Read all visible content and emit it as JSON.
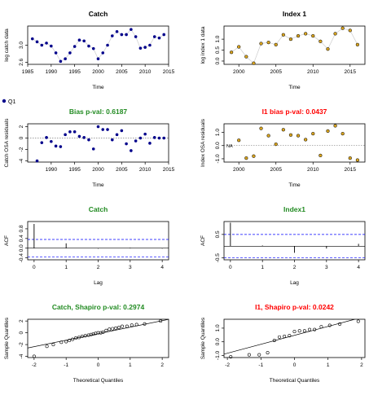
{
  "legend": {
    "label": "Q1",
    "marker_color": "#00008B"
  },
  "colors": {
    "title_default": "#000000",
    "title_good": "#228B22",
    "title_bad": "#FF0000",
    "series_dark": "#00008B",
    "series_gold": "#DAA520",
    "hline_blue": "#0000FF"
  },
  "chart_data": [
    {
      "type": "scatter",
      "title": "Catch",
      "title_color": "black",
      "xlabel": "Time",
      "ylabel": "log catch data",
      "xlim": [
        1985,
        2015
      ],
      "ylim": [
        2.55,
        3.45
      ],
      "xticks": [
        1985,
        1990,
        1995,
        2000,
        2005,
        2010,
        2015
      ],
      "yticks": [
        {
          "v": 2.6,
          "label": "2.6"
        },
        {
          "v": 3.0,
          "label": "3.0"
        }
      ],
      "connect": true,
      "point_style": "filled-dark",
      "x": [
        1986,
        1987,
        1988,
        1989,
        1990,
        1991,
        1992,
        1993,
        1994,
        1995,
        1996,
        1997,
        1998,
        1999,
        2000,
        2001,
        2002,
        2003,
        2004,
        2005,
        2006,
        2007,
        2008,
        2009,
        2010,
        2011,
        2012,
        2013,
        2014
      ],
      "y": [
        3.15,
        3.08,
        3.0,
        3.05,
        2.98,
        2.82,
        2.62,
        2.68,
        2.82,
        2.97,
        3.12,
        3.1,
        2.98,
        2.92,
        2.68,
        2.82,
        3.0,
        3.22,
        3.32,
        3.25,
        3.25,
        3.37,
        3.2,
        2.93,
        2.95,
        3.0,
        3.2,
        3.17,
        3.25
      ]
    },
    {
      "type": "scatter",
      "title": "Index 1",
      "title_color": "black",
      "xlabel": "Time",
      "ylabel": "log index 1 data",
      "xlim": [
        1998,
        2017
      ],
      "ylim": [
        -0.15,
        1.6
      ],
      "xticks": [
        2000,
        2005,
        2010,
        2015
      ],
      "yticks": [
        {
          "v": 0.0,
          "label": "0.0"
        },
        {
          "v": 0.5,
          "label": "0.5"
        },
        {
          "v": 1.0,
          "label": "1.0"
        }
      ],
      "connect": true,
      "point_style": "gold",
      "x": [
        1999,
        2000,
        2001,
        2002,
        2003,
        2004,
        2005,
        2006,
        2007,
        2008,
        2009,
        2010,
        2011,
        2012,
        2013,
        2014,
        2015,
        2016
      ],
      "y": [
        0.4,
        0.65,
        0.2,
        -0.1,
        0.8,
        0.85,
        0.75,
        1.2,
        1.0,
        1.15,
        1.25,
        1.15,
        0.9,
        0.55,
        1.25,
        1.5,
        1.4,
        0.75
      ]
    },
    {
      "type": "scatter",
      "title": "Bias p-val: 0.6187",
      "title_color": "green",
      "xlabel": "Time",
      "ylabel": "Catch OSA residuals",
      "xlim": [
        1985,
        2015
      ],
      "ylim": [
        -4.2,
        2.5
      ],
      "xticks": [
        1990,
        1995,
        2000,
        2005,
        2010,
        2015
      ],
      "yticks": [
        {
          "v": -4,
          "label": "-4"
        },
        {
          "v": -2,
          "label": "-2"
        },
        {
          "v": 0,
          "label": "0"
        },
        {
          "v": 2,
          "label": "2"
        }
      ],
      "connect": false,
      "point_style": "filled-dark",
      "zero_line": true,
      "x": [
        1987,
        1988,
        1989,
        1990,
        1991,
        1992,
        1993,
        1994,
        1995,
        1996,
        1997,
        1998,
        1999,
        2000,
        2001,
        2002,
        2003,
        2004,
        2005,
        2006,
        2007,
        2008,
        2009,
        2010,
        2011,
        2012,
        2013,
        2014
      ],
      "y": [
        -4.0,
        -0.8,
        0.1,
        -0.6,
        -1.4,
        -1.5,
        0.6,
        1.1,
        1.1,
        0.3,
        0.1,
        -0.3,
        -1.9,
        2.0,
        1.5,
        1.5,
        -0.3,
        0.6,
        1.3,
        -1.0,
        -2.2,
        -0.5,
        0.0,
        0.7,
        -0.9,
        0.1,
        0.0,
        0.0
      ]
    },
    {
      "type": "scatter",
      "title": "I1 bias p-val: 0.0437",
      "title_color": "red",
      "xlabel": "Time",
      "ylabel": "Index OSA residuals",
      "xlim": [
        1998,
        2017
      ],
      "ylim": [
        -1.25,
        1.65
      ],
      "xticks": [
        2000,
        2005,
        2010,
        2015
      ],
      "yticks": [
        {
          "v": -1.0,
          "label": "-1.0"
        },
        {
          "v": 0.0,
          "label": "0.0"
        },
        {
          "v": 1.0,
          "label": "1.0"
        }
      ],
      "connect": false,
      "point_style": "gold",
      "zero_line": true,
      "annotation": "NA",
      "x": [
        2000,
        2001,
        2002,
        2003,
        2004,
        2005,
        2006,
        2007,
        2008,
        2009,
        2010,
        2011,
        2012,
        2013,
        2014,
        2015,
        2016
      ],
      "y": [
        0.4,
        -0.95,
        -0.8,
        1.3,
        0.75,
        0.1,
        1.2,
        0.8,
        0.75,
        0.45,
        0.9,
        -0.75,
        1.1,
        1.5,
        0.9,
        -0.95,
        -1.1
      ]
    },
    {
      "type": "bar",
      "title": "Catch",
      "title_color": "green",
      "xlabel": "Lag",
      "ylabel": "ACF",
      "xlim": [
        -0.2,
        4.2
      ],
      "ylim": [
        -0.48,
        1.1
      ],
      "xticks": [
        0,
        1,
        2,
        3,
        4
      ],
      "yticks": [
        {
          "v": -0.4,
          "label": "-0.4"
        },
        {
          "v": 0.0,
          "label": "0.0"
        },
        {
          "v": 0.4,
          "label": "0.4"
        },
        {
          "v": 0.8,
          "label": "0.8"
        }
      ],
      "lags": [
        0,
        1,
        2,
        3,
        4
      ],
      "values": [
        1.0,
        0.2,
        -0.02,
        0.02,
        -0.02
      ],
      "conf_band": [
        0.36,
        -0.36
      ]
    },
    {
      "type": "bar",
      "title": "Index1",
      "title_color": "green",
      "xlabel": "Lag",
      "ylabel": "ACF",
      "xlim": [
        -0.2,
        4.2
      ],
      "ylim": [
        -0.58,
        1.05
      ],
      "xticks": [
        0,
        1,
        2,
        3,
        4
      ],
      "yticks": [
        {
          "v": -0.5,
          "label": "-0.5"
        },
        {
          "v": 0.5,
          "label": "0.5"
        }
      ],
      "lags": [
        0,
        1,
        2,
        3,
        4
      ],
      "values": [
        1.0,
        0.03,
        -0.28,
        -0.1,
        0.1
      ],
      "conf_band": [
        0.5,
        -0.5
      ]
    },
    {
      "type": "scatter",
      "title": "Catch, Shapiro p-val: 0.2974",
      "title_color": "green",
      "xlabel": "Theoretical Quantiles",
      "ylabel": "Sample Quantiles",
      "xlim": [
        -2.2,
        2.2
      ],
      "ylim": [
        -4.2,
        2.3
      ],
      "xticks": [
        -2,
        -1,
        0,
        1,
        2
      ],
      "yticks": [
        {
          "v": -4,
          "label": "-4"
        },
        {
          "v": -2,
          "label": "-2"
        },
        {
          "v": 0,
          "label": "0"
        },
        {
          "v": 2,
          "label": "2"
        }
      ],
      "connect": false,
      "point_style": "open",
      "qq_line": [
        [
          -2.4,
          -2.8
        ],
        [
          2.4,
          2.5
        ]
      ],
      "x": [
        -2.0,
        -1.6,
        -1.4,
        -1.15,
        -1.0,
        -0.9,
        -0.8,
        -0.7,
        -0.6,
        -0.5,
        -0.4,
        -0.3,
        -0.22,
        -0.15,
        -0.08,
        0.0,
        0.08,
        0.15,
        0.25,
        0.35,
        0.45,
        0.55,
        0.65,
        0.75,
        0.9,
        1.05,
        1.2,
        1.45,
        1.95
      ],
      "y": [
        -4.0,
        -2.3,
        -2.0,
        -1.6,
        -1.5,
        -1.3,
        -1.1,
        -0.9,
        -0.8,
        -0.6,
        -0.5,
        -0.4,
        -0.3,
        -0.2,
        -0.1,
        0.0,
        0.0,
        0.1,
        0.4,
        0.6,
        0.7,
        0.8,
        0.9,
        1.1,
        1.1,
        1.3,
        1.4,
        1.5,
        2.0
      ]
    },
    {
      "type": "scatter",
      "title": "I1, Shapiro p-val: 0.0242",
      "title_color": "red",
      "xlabel": "Theoretical Quantiles",
      "ylabel": "Sample Quantiles",
      "xlim": [
        -2.1,
        2.1
      ],
      "ylim": [
        -1.15,
        1.65
      ],
      "xticks": [
        -2,
        -1,
        0,
        1,
        2
      ],
      "yticks": [
        {
          "v": -1.0,
          "label": "-1.0"
        },
        {
          "v": 0.0,
          "label": "0.0"
        },
        {
          "v": 1.0,
          "label": "1.0"
        }
      ],
      "connect": false,
      "point_style": "open",
      "qq_line": [
        [
          -2.1,
          -0.9
        ],
        [
          1.8,
          1.65
        ]
      ],
      "x": [
        -1.9,
        -1.35,
        -1.05,
        -0.8,
        -0.6,
        -0.45,
        -0.3,
        -0.15,
        0.0,
        0.15,
        0.3,
        0.45,
        0.6,
        0.8,
        1.05,
        1.35,
        1.9
      ],
      "y": [
        -1.1,
        -0.95,
        -0.95,
        -0.8,
        0.1,
        0.35,
        0.4,
        0.45,
        0.75,
        0.8,
        0.8,
        0.9,
        0.9,
        1.1,
        1.2,
        1.3,
        1.5
      ]
    }
  ]
}
